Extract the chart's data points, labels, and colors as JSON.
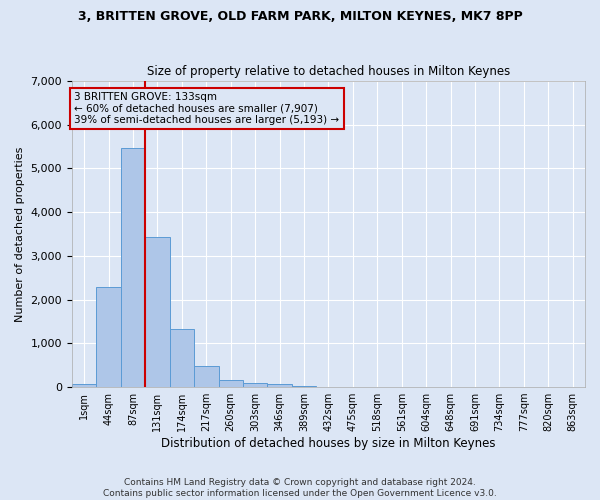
{
  "title_line1": "3, BRITTEN GROVE, OLD FARM PARK, MILTON KEYNES, MK7 8PP",
  "title_line2": "Size of property relative to detached houses in Milton Keynes",
  "xlabel": "Distribution of detached houses by size in Milton Keynes",
  "ylabel": "Number of detached properties",
  "footnote": "Contains HM Land Registry data © Crown copyright and database right 2024.\nContains public sector information licensed under the Open Government Licence v3.0.",
  "bar_labels": [
    "1sqm",
    "44sqm",
    "87sqm",
    "131sqm",
    "174sqm",
    "217sqm",
    "260sqm",
    "303sqm",
    "346sqm",
    "389sqm",
    "432sqm",
    "475sqm",
    "518sqm",
    "561sqm",
    "604sqm",
    "648sqm",
    "691sqm",
    "734sqm",
    "777sqm",
    "820sqm",
    "863sqm"
  ],
  "bar_heights": [
    80,
    2280,
    5480,
    3440,
    1320,
    480,
    160,
    100,
    60,
    30,
    0,
    0,
    0,
    0,
    0,
    0,
    0,
    0,
    0,
    0,
    0
  ],
  "bar_color": "#aec6e8",
  "bar_edge_color": "#5b9bd5",
  "background_color": "#dce6f5",
  "grid_color": "#ffffff",
  "vline_x_index": 3,
  "vline_color": "#cc0000",
  "annotation_text": "3 BRITTEN GROVE: 133sqm\n← 60% of detached houses are smaller (7,907)\n39% of semi-detached houses are larger (5,193) →",
  "annotation_box_color": "#cc0000",
  "ylim": [
    0,
    7000
  ],
  "yticks": [
    0,
    1000,
    2000,
    3000,
    4000,
    5000,
    6000,
    7000
  ],
  "title1_fontsize": 9,
  "title2_fontsize": 8.5,
  "footnote_fontsize": 6.5
}
